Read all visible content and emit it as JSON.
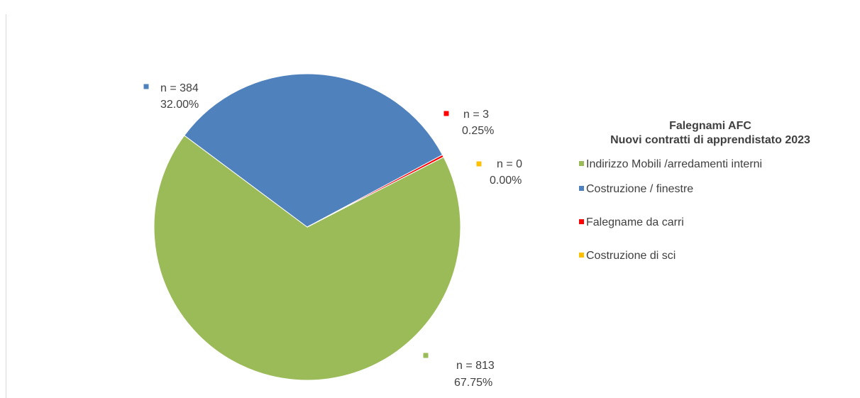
{
  "chart_data": {
    "type": "pie",
    "title": "Falegnami AFC",
    "subtitle": "Nuovi contratti di apprendistato 2023",
    "categories": [
      "Indirizzo Mobili /arredamenti interni",
      "Costruzione / finestre",
      "Falegname da carri",
      "Costruzione di sci"
    ],
    "values": [
      813,
      384,
      3,
      0
    ],
    "value_labels": [
      "n = 813",
      "n = 384",
      "n = 3",
      "n = 0"
    ],
    "percentages": [
      67.75,
      32.0,
      0.25,
      0.0
    ],
    "percentage_labels": [
      "67.75%",
      "32.00%",
      "0.25%",
      "0.00%"
    ],
    "colors": [
      "#9bbb59",
      "#4f81bd",
      "#ff0000",
      "#ffc000"
    ],
    "legend": "right"
  }
}
